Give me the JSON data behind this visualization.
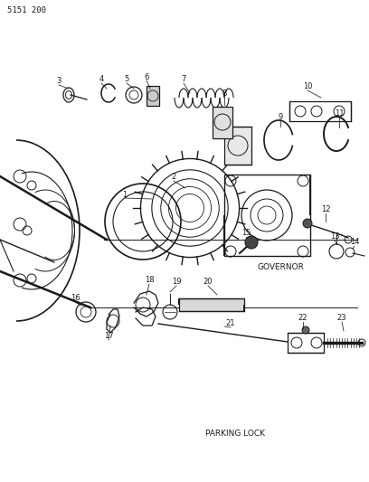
{
  "title": "5151 200",
  "governor_label": "GOVERNOR",
  "parking_label": "PARKING LOCK",
  "bg_color": "#ffffff",
  "line_color": "#1a1a1a",
  "fig_width": 4.08,
  "fig_height": 5.33,
  "dpi": 100
}
